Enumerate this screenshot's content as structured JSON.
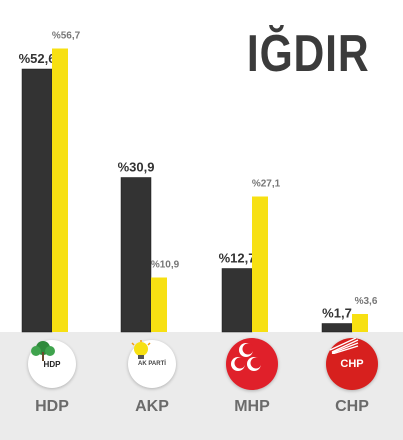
{
  "title": "IĞDIR",
  "chart_data": {
    "type": "bar",
    "categories": [
      "HDP",
      "AKP",
      "MHP",
      "CHP"
    ],
    "series": [
      {
        "color": "#333333",
        "values": [
          52.6,
          30.9,
          12.7,
          1.7
        ],
        "labels": [
          "%52,6",
          "%30,9",
          "%12,7",
          "%1,7"
        ]
      },
      {
        "color": "#f7e012",
        "values": [
          56.7,
          10.9,
          27.1,
          3.6
        ],
        "labels": [
          "%56,7",
          "%10,9",
          "%27,1",
          "%3,6"
        ]
      }
    ],
    "ylim": [
      0,
      60
    ],
    "grid": false
  },
  "logos": [
    {
      "icon": "hdp-logo-icon",
      "text": "HDP"
    },
    {
      "icon": "akp-logo-icon",
      "text": "AK PARTİ"
    },
    {
      "icon": "mhp-logo-icon",
      "text": ""
    },
    {
      "icon": "chp-logo-icon",
      "text": "CHP"
    }
  ],
  "colors": {
    "dark_bar": "#333333",
    "yellow_bar": "#f7e012",
    "band": "#ebebeb",
    "mhp_red": "#e0202a",
    "chp_red": "#d7201e",
    "hdp_green": "#2f8a3c",
    "akp_orange": "#f39c12"
  }
}
